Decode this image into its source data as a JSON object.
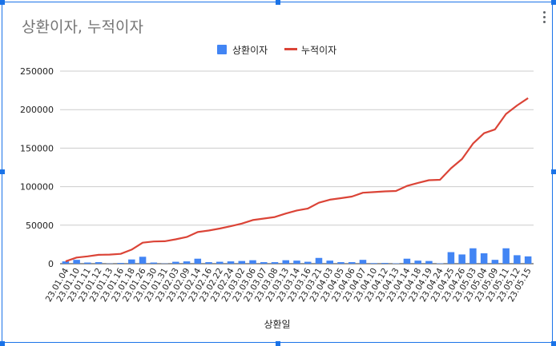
{
  "chart_data": {
    "type": "bar+line",
    "title": "상환이자, 누적이자",
    "xlabel": "상환일",
    "ylabel": "",
    "ylim": [
      0,
      250000
    ],
    "yticks": [
      0,
      50000,
      100000,
      150000,
      200000,
      250000
    ],
    "grid": true,
    "legend_position": "top",
    "colors": {
      "bar": "#4285f4",
      "line": "#db4437"
    },
    "categories": [
      "23.01.04",
      "23.01.10",
      "23.01.11",
      "23.01.12",
      "23.01.13",
      "23.01.16",
      "23.01.18",
      "23.01.26",
      "23.01.30",
      "23.01.31",
      "23.02.03",
      "23.02.09",
      "23.02.14",
      "23.02.16",
      "23.02.22",
      "23.02.24",
      "23.03.02",
      "23.03.06",
      "23.03.07",
      "23.03.08",
      "23.03.13",
      "23.03.14",
      "23.03.16",
      "23.03.21",
      "23.04.03",
      "23.04.05",
      "23.04.06",
      "23.04.07",
      "23.04.10",
      "23.04.12",
      "23.04.13",
      "23.04.14",
      "23.04.18",
      "23.04.19",
      "23.04.24",
      "23.04.25",
      "23.04.26",
      "23.05.03",
      "23.05.04",
      "23.05.09",
      "23.05.11",
      "23.05.12",
      "23.05.15"
    ],
    "series": [
      {
        "name": "상환이자",
        "type": "bar",
        "values": [
          3000,
          5000,
          1500,
          2000,
          300,
          1000,
          5500,
          9000,
          1500,
          300,
          2500,
          3000,
          6500,
          2000,
          2500,
          3000,
          3500,
          4500,
          2000,
          2000,
          4500,
          4000,
          2500,
          7500,
          4000,
          2000,
          2000,
          5000,
          800,
          1000,
          500,
          6500,
          4000,
          3500,
          500,
          15000,
          12000,
          20000,
          13500,
          5000,
          20000,
          11000,
          9500
        ]
      },
      {
        "name": "누적이자",
        "type": "line",
        "values": [
          3000,
          8000,
          9500,
          11500,
          11800,
          12800,
          18300,
          27300,
          28800,
          29100,
          31600,
          34600,
          41100,
          43100,
          45600,
          48600,
          52100,
          56600,
          58600,
          60600,
          65100,
          69100,
          71600,
          79100,
          83100,
          85100,
          87100,
          92100,
          92900,
          93900,
          94400,
          100900,
          104900,
          108400,
          108900,
          123900,
          135900,
          155900,
          169400,
          174400,
          194400,
          205400,
          214900
        ]
      }
    ]
  }
}
